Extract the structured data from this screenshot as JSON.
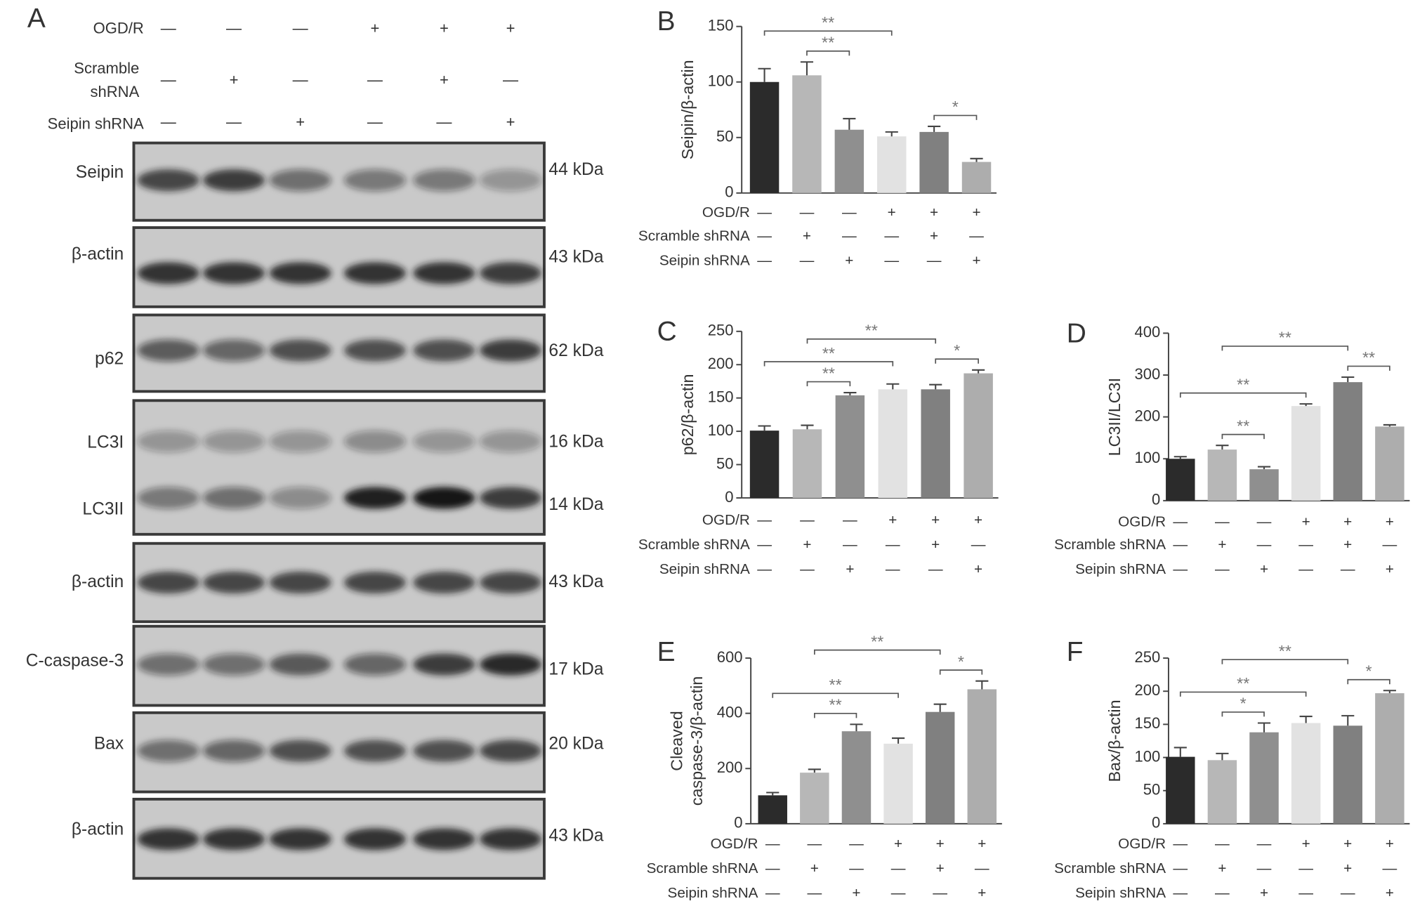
{
  "blot": {
    "panel": "A",
    "conditions": [
      {
        "lines": [
          "OGD/R"
        ],
        "signs": [
          "—",
          "—",
          "—",
          "+",
          "+",
          "+"
        ]
      },
      {
        "lines": [
          "Scramble",
          "shRNA"
        ],
        "signs": [
          "—",
          "+",
          "—",
          "—",
          "+",
          "—"
        ]
      },
      {
        "lines": [
          "Seipin shRNA"
        ],
        "signs": [
          "—",
          "—",
          "+",
          "—",
          "—",
          "+"
        ]
      }
    ],
    "rows": [
      {
        "label": "Seipin",
        "kda": "44 kDa"
      },
      {
        "label": "β-actin",
        "kda": "43 kDa"
      },
      {
        "label": "p62",
        "kda": "62 kDa"
      },
      {
        "label": "LC3I",
        "kda": "16 kDa"
      },
      {
        "label": "LC3II",
        "kda": "14 kDa"
      },
      {
        "label": "β-actin",
        "kda": "43 kDa"
      },
      {
        "label": "C-caspase-3",
        "kda": "17 kDa"
      },
      {
        "label": "Bax",
        "kda": "20 kDa"
      },
      {
        "label": "β-actin",
        "kda": "43 kDa"
      }
    ]
  },
  "chart_data": [
    {
      "type": "bar",
      "panel": "B",
      "ylabel": [
        "Seipin/β-actin"
      ],
      "categories": [
        null,
        null,
        null,
        null,
        null,
        null
      ],
      "values": [
        100,
        106,
        57,
        51,
        55,
        28
      ],
      "errors": [
        12,
        12,
        10,
        4,
        5,
        3
      ],
      "colors": [
        "#2b2b2b",
        "#b7b7b7",
        "#8f8f8f",
        "#e2e2e2",
        "#808080",
        "#adadad"
      ],
      "ylim": [
        0,
        150
      ],
      "yticks": [
        0,
        50,
        100,
        150
      ],
      "brackets": [
        {
          "label": "**",
          "bars": [
            1,
            2
          ]
        },
        {
          "label": "*",
          "bars": [
            4,
            5
          ]
        },
        {
          "label": "**",
          "bars": [
            0,
            3
          ]
        }
      ],
      "conditions": [
        {
          "label": "OGD/R",
          "signs": [
            "—",
            "—",
            "—",
            "+",
            "+",
            "+"
          ]
        },
        {
          "label": "Scramble shRNA",
          "signs": [
            "—",
            "+",
            "—",
            "—",
            "+",
            "—"
          ]
        },
        {
          "label": "Seipin shRNA",
          "signs": [
            "—",
            "—",
            "+",
            "—",
            "—",
            "+"
          ]
        }
      ]
    },
    {
      "type": "bar",
      "panel": "C",
      "ylabel": [
        "p62/β-actin"
      ],
      "categories": [
        null,
        null,
        null,
        null,
        null,
        null
      ],
      "values": [
        101,
        103,
        154,
        163,
        163,
        187
      ],
      "errors": [
        7,
        6,
        4,
        8,
        7,
        5
      ],
      "colors": [
        "#2b2b2b",
        "#b7b7b7",
        "#8f8f8f",
        "#e2e2e2",
        "#808080",
        "#adadad"
      ],
      "ylim": [
        0,
        250
      ],
      "yticks": [
        0,
        50,
        100,
        150,
        200,
        250
      ],
      "brackets": [
        {
          "label": "**",
          "bars": [
            1,
            2
          ]
        },
        {
          "label": "*",
          "bars": [
            4,
            5
          ]
        },
        {
          "label": "**",
          "bars": [
            0,
            3
          ]
        },
        {
          "label": "**",
          "bars": [
            1,
            4
          ]
        }
      ],
      "conditions": [
        {
          "label": "OGD/R",
          "signs": [
            "—",
            "—",
            "—",
            "+",
            "+",
            "+"
          ]
        },
        {
          "label": "Scramble shRNA",
          "signs": [
            "—",
            "+",
            "—",
            "—",
            "+",
            "—"
          ]
        },
        {
          "label": "Seipin shRNA",
          "signs": [
            "—",
            "—",
            "+",
            "—",
            "—",
            "+"
          ]
        }
      ]
    },
    {
      "type": "bar",
      "panel": "D",
      "ylabel": [
        "LC3II/LC3I"
      ],
      "categories": [
        null,
        null,
        null,
        null,
        null,
        null
      ],
      "values": [
        100,
        122,
        75,
        226,
        283,
        177
      ],
      "errors": [
        5,
        10,
        6,
        5,
        12,
        4
      ],
      "colors": [
        "#2b2b2b",
        "#b7b7b7",
        "#8f8f8f",
        "#e2e2e2",
        "#808080",
        "#adadad"
      ],
      "ylim": [
        0,
        400
      ],
      "yticks": [
        0,
        100,
        200,
        300,
        400
      ],
      "brackets": [
        {
          "label": "**",
          "bars": [
            1,
            2
          ]
        },
        {
          "label": "**",
          "bars": [
            4,
            5
          ]
        },
        {
          "label": "**",
          "bars": [
            0,
            3
          ]
        },
        {
          "label": "**",
          "bars": [
            1,
            4
          ]
        }
      ],
      "conditions": [
        {
          "label": "OGD/R",
          "signs": [
            "—",
            "—",
            "—",
            "+",
            "+",
            "+"
          ]
        },
        {
          "label": "Scramble shRNA",
          "signs": [
            "—",
            "+",
            "—",
            "—",
            "+",
            "—"
          ]
        },
        {
          "label": "Seipin shRNA",
          "signs": [
            "—",
            "—",
            "+",
            "—",
            "—",
            "+"
          ]
        }
      ]
    },
    {
      "type": "bar",
      "panel": "E",
      "ylabel": [
        "Cleaved",
        "caspase-3/β-actin"
      ],
      "categories": [
        null,
        null,
        null,
        null,
        null,
        null
      ],
      "values": [
        103,
        185,
        335,
        290,
        405,
        487
      ],
      "errors": [
        10,
        12,
        25,
        20,
        28,
        30
      ],
      "colors": [
        "#2b2b2b",
        "#b7b7b7",
        "#8f8f8f",
        "#e2e2e2",
        "#808080",
        "#adadad"
      ],
      "ylim": [
        0,
        600
      ],
      "yticks": [
        0,
        200,
        400,
        600
      ],
      "brackets": [
        {
          "label": "**",
          "bars": [
            1,
            2
          ]
        },
        {
          "label": "*",
          "bars": [
            4,
            5
          ]
        },
        {
          "label": "**",
          "bars": [
            0,
            3
          ]
        },
        {
          "label": "**",
          "bars": [
            1,
            4
          ]
        }
      ],
      "conditions": [
        {
          "label": "OGD/R",
          "signs": [
            "—",
            "—",
            "—",
            "+",
            "+",
            "+"
          ]
        },
        {
          "label": "Scramble shRNA",
          "signs": [
            "—",
            "+",
            "—",
            "—",
            "+",
            "—"
          ]
        },
        {
          "label": "Seipin shRNA",
          "signs": [
            "—",
            "—",
            "+",
            "—",
            "—",
            "+"
          ]
        }
      ]
    },
    {
      "type": "bar",
      "panel": "F",
      "ylabel": [
        "Bax/β-actin"
      ],
      "categories": [
        null,
        null,
        null,
        null,
        null,
        null
      ],
      "values": [
        101,
        96,
        138,
        152,
        148,
        197
      ],
      "errors": [
        14,
        10,
        14,
        10,
        15,
        4
      ],
      "colors": [
        "#2b2b2b",
        "#b7b7b7",
        "#8f8f8f",
        "#e2e2e2",
        "#808080",
        "#adadad"
      ],
      "ylim": [
        0,
        250
      ],
      "yticks": [
        0,
        50,
        100,
        150,
        200,
        250
      ],
      "brackets": [
        {
          "label": "*",
          "bars": [
            1,
            2
          ]
        },
        {
          "label": "*",
          "bars": [
            4,
            5
          ]
        },
        {
          "label": "**",
          "bars": [
            0,
            3
          ]
        },
        {
          "label": "**",
          "bars": [
            1,
            4
          ]
        }
      ],
      "conditions": [
        {
          "label": "OGD/R",
          "signs": [
            "—",
            "—",
            "—",
            "+",
            "+",
            "+"
          ]
        },
        {
          "label": "Scramble shRNA",
          "signs": [
            "—",
            "+",
            "—",
            "—",
            "+",
            "—"
          ]
        },
        {
          "label": "Seipin shRNA",
          "signs": [
            "—",
            "—",
            "+",
            "—",
            "—",
            "+"
          ]
        }
      ]
    }
  ]
}
